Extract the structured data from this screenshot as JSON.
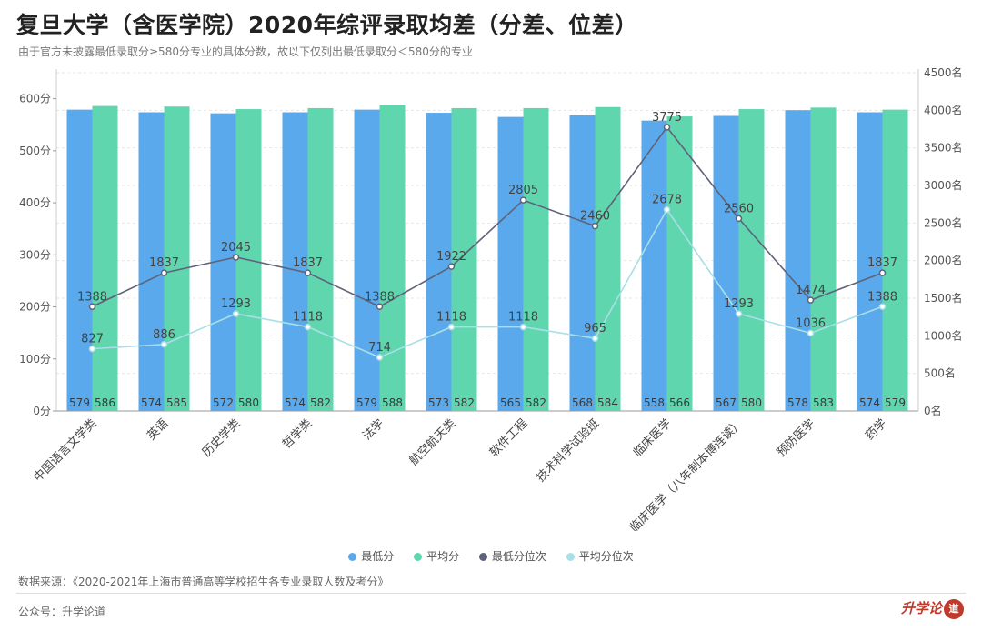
{
  "header": {
    "title": "复旦大学（含医学院）2020年综评录取均差（分差、位差）",
    "subtitle": "由于官方未披露最低录取分≥580分专业的具体分数，故以下仅列出最低录取分＜580分的专业"
  },
  "colors": {
    "min_score": "#5aa9ec",
    "avg_score": "#5fd6ae",
    "min_rank": "#5f6379",
    "avg_rank": "#a9dfe6"
  },
  "legend": {
    "min_score": "最低分",
    "avg_score": "平均分",
    "min_rank": "最低分位次",
    "avg_rank": "平均分位次"
  },
  "chart_data": {
    "type": "bar",
    "categories": [
      "中国语言文学类",
      "英语",
      "历史学类",
      "哲学类",
      "法学",
      "航空航天类",
      "软件工程",
      "技术科学试验班",
      "临床医学",
      "临床医学（八年制本博连读）",
      "预防医学",
      "药学"
    ],
    "series": [
      {
        "name": "最低分",
        "type": "bar",
        "axis": "left",
        "values": [
          579,
          574,
          572,
          574,
          579,
          573,
          565,
          568,
          558,
          567,
          578,
          574
        ]
      },
      {
        "name": "平均分",
        "type": "bar",
        "axis": "left",
        "values": [
          586,
          585,
          580,
          582,
          588,
          582,
          582,
          584,
          566,
          580,
          583,
          579
        ]
      },
      {
        "name": "最低分位次",
        "type": "line",
        "axis": "right",
        "values": [
          1388,
          1837,
          2045,
          1837,
          1388,
          1922,
          2805,
          2460,
          3775,
          2560,
          1474,
          1837
        ]
      },
      {
        "name": "平均分位次",
        "type": "line",
        "axis": "right",
        "values": [
          827,
          886,
          1293,
          1118,
          714,
          1118,
          1118,
          965,
          2678,
          1293,
          1036,
          1388
        ]
      }
    ],
    "y_left": {
      "min": 0,
      "max": 650,
      "ticks": [
        0,
        100,
        200,
        300,
        400,
        500,
        600
      ],
      "unit": "分"
    },
    "y_right": {
      "min": 0,
      "max": 4500,
      "ticks": [
        0,
        500,
        1000,
        1500,
        2000,
        2500,
        3000,
        3500,
        4000,
        4500
      ],
      "unit": "名"
    },
    "grid": true,
    "legend_position": "bottom"
  },
  "footer": {
    "source": "数据来源：《2020-2021年上海市普通高等学校招生各专业录取人数及考分》",
    "account": "公众号：升学论道",
    "logo": "升学论",
    "logo_seal": "道"
  }
}
